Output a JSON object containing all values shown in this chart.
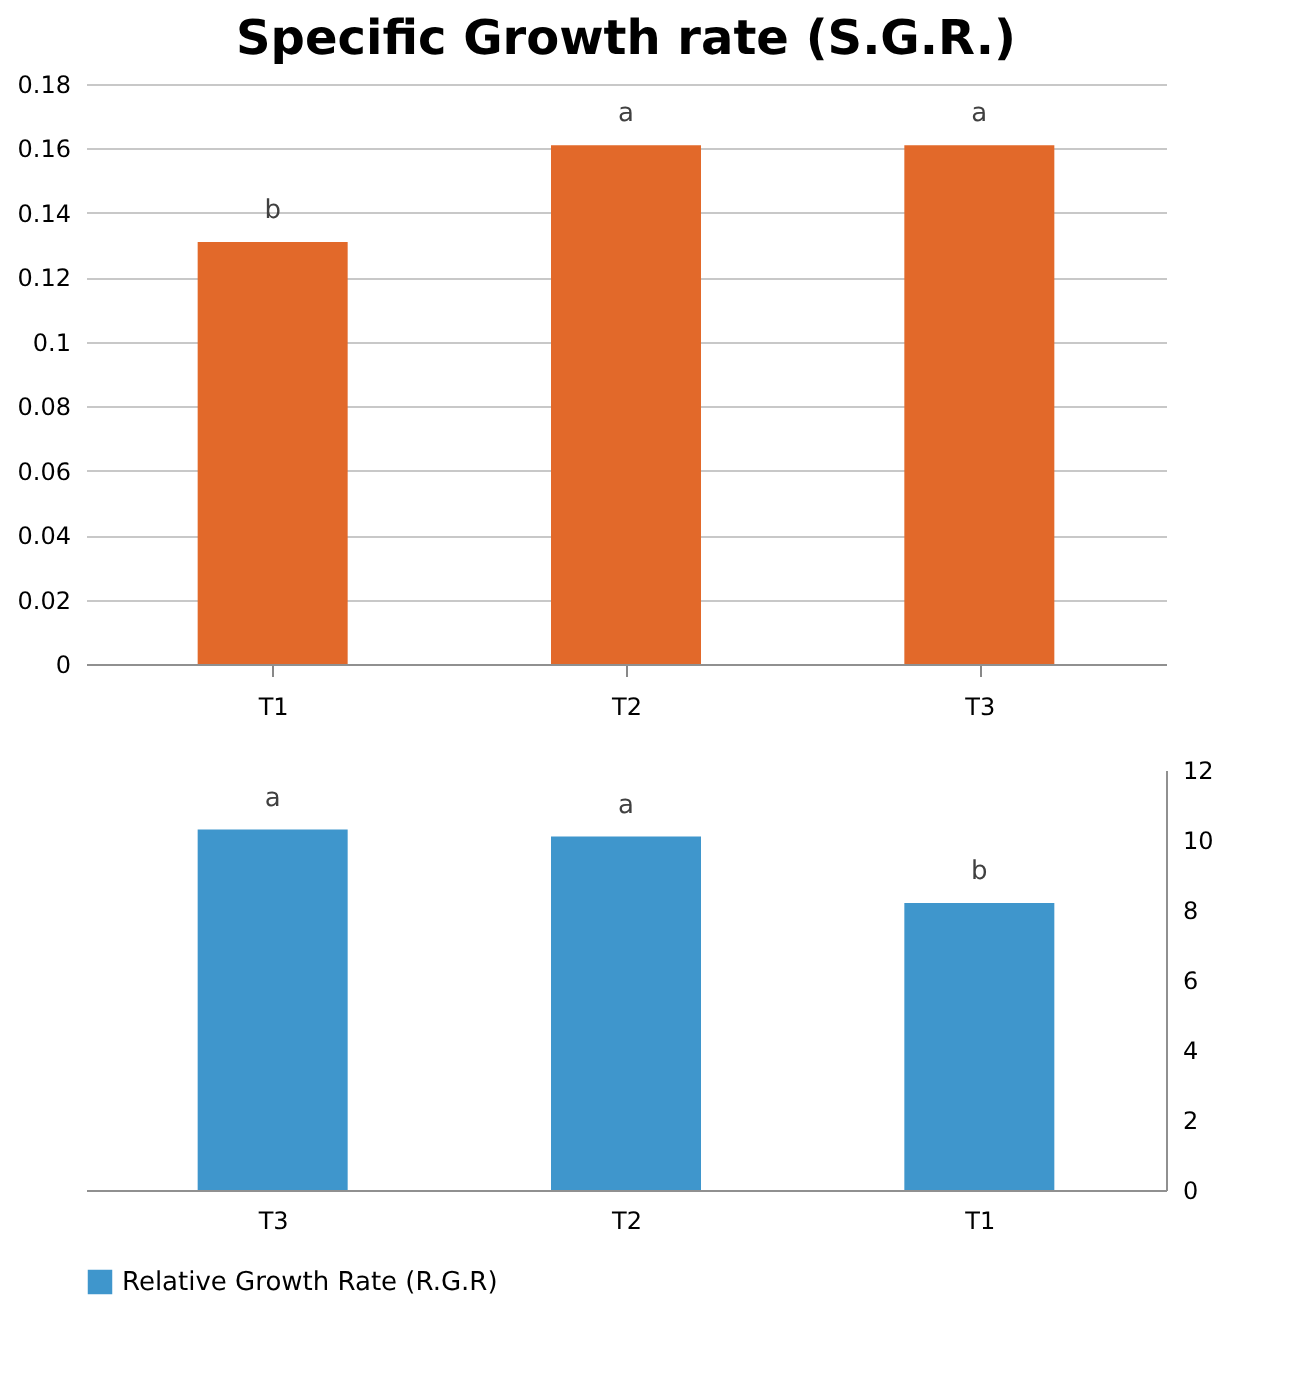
{
  "chart_data": [
    {
      "type": "bar",
      "title": "Specific Growth rate (S.G.R.)",
      "categories": [
        "T1",
        "T2",
        "T3"
      ],
      "series": [
        {
          "color": "#e2692a",
          "values": [
            0.131,
            0.161,
            0.161
          ]
        }
      ],
      "ylim": [
        0,
        0.18
      ],
      "yticks": [
        0,
        0.02,
        0.04,
        0.06,
        0.08,
        0.1,
        0.12,
        0.14,
        0.16,
        0.18
      ],
      "grid": "y",
      "annotations": [
        {
          "text": "b",
          "x": "T1",
          "y": 0.131
        },
        {
          "text": "a",
          "x": "T2",
          "y": 0.161
        },
        {
          "text": "a",
          "x": "T3",
          "y": 0.161
        }
      ]
    },
    {
      "type": "bar",
      "categories": [
        "T3",
        "T2",
        "T1"
      ],
      "series": [
        {
          "name": "Relative Growth Rate (R.G.R)",
          "color": "#3f96cc",
          "values": [
            10.3,
            10.1,
            8.2
          ],
          "axis": "y2"
        }
      ],
      "y2lim": [
        0,
        12
      ],
      "y2ticks": [
        0,
        2,
        4,
        6,
        8,
        10,
        12
      ],
      "grid": false,
      "legend": "bottom",
      "annotations": [
        "a",
        "a",
        "b"
      ]
    }
  ]
}
